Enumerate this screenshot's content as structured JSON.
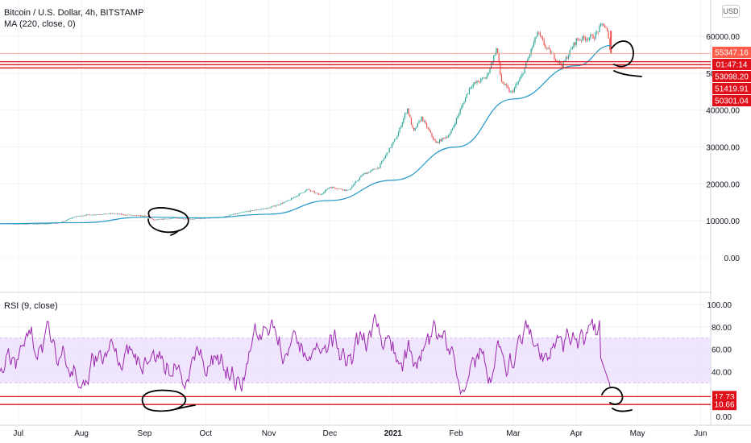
{
  "symbol": "Bitcoin / U.S. Dollar, 4h, BITSTAMP",
  "ma_label": "MA (220, close, 0)",
  "rsi_label": "RSI (9, close)",
  "currency": "USD",
  "colors": {
    "up": "#26a69a",
    "down": "#ef5350",
    "ma": "#2196c9",
    "rsi": "#9c27b0",
    "rsi_band": "#e9dcfb",
    "level_line": "#e0101b",
    "annotation": "#000000"
  },
  "chart_data": [
    {
      "type": "candlestick",
      "title": "Bitcoin / U.S. Dollar, 4h, BITSTAMP",
      "y_ticks": [
        "60000.00",
        "50000.00",
        "40000.00",
        "30000.00",
        "20000.00",
        "10000.00",
        "0.00"
      ],
      "ylim": [
        -3000,
        66000
      ],
      "x_ticks": [
        "Jul",
        "Aug",
        "Sep",
        "Oct",
        "Nov",
        "Dec",
        "2021",
        "Feb",
        "Mar",
        "Apr",
        "May",
        "Jun"
      ],
      "price_path": [
        [
          "2020-06-22",
          9300
        ],
        [
          "2020-07-01",
          9150
        ],
        [
          "2020-07-15",
          9200
        ],
        [
          "2020-07-22",
          9500
        ],
        [
          "2020-07-28",
          11000
        ],
        [
          "2020-08-02",
          11500
        ],
        [
          "2020-08-17",
          12000
        ],
        [
          "2020-08-22",
          11600
        ],
        [
          "2020-09-03",
          11200
        ],
        [
          "2020-09-05",
          10200
        ],
        [
          "2020-09-15",
          10700
        ],
        [
          "2020-09-25",
          10500
        ],
        [
          "2020-10-08",
          10900
        ],
        [
          "2020-10-21",
          12500
        ],
        [
          "2020-11-01",
          13500
        ],
        [
          "2020-11-10",
          15300
        ],
        [
          "2020-11-20",
          18500
        ],
        [
          "2020-11-26",
          17000
        ],
        [
          "2020-12-01",
          19200
        ],
        [
          "2020-12-10",
          18200
        ],
        [
          "2020-12-17",
          22500
        ],
        [
          "2020-12-25",
          24500
        ],
        [
          "2021-01-03",
          33000
        ],
        [
          "2021-01-08",
          40500
        ],
        [
          "2021-01-11",
          34000
        ],
        [
          "2021-01-15",
          38000
        ],
        [
          "2021-01-22",
          31000
        ],
        [
          "2021-01-29",
          33500
        ],
        [
          "2021-02-08",
          46500
        ],
        [
          "2021-02-16",
          49000
        ],
        [
          "2021-02-21",
          57000
        ],
        [
          "2021-02-23",
          48000
        ],
        [
          "2021-02-28",
          44500
        ],
        [
          "2021-03-05",
          49000
        ],
        [
          "2021-03-13",
          61000
        ],
        [
          "2021-03-17",
          57000
        ],
        [
          "2021-03-25",
          52000
        ],
        [
          "2021-04-01",
          59000
        ],
        [
          "2021-04-10",
          60000
        ],
        [
          "2021-04-14",
          63500
        ],
        [
          "2021-04-16",
          61500
        ],
        [
          "2021-04-18",
          55347.16
        ]
      ],
      "moving_average": {
        "name": "MA (220, close, 0)",
        "points": [
          [
            "2020-06-22",
            9200
          ],
          [
            "2020-08-01",
            9500
          ],
          [
            "2020-09-01",
            11000
          ],
          [
            "2020-10-01",
            10800
          ],
          [
            "2020-11-01",
            11800
          ],
          [
            "2020-12-01",
            15500
          ],
          [
            "2021-01-01",
            21000
          ],
          [
            "2021-02-01",
            30000
          ],
          [
            "2021-03-01",
            43000
          ],
          [
            "2021-04-01",
            52000
          ],
          [
            "2021-04-18",
            57500
          ]
        ]
      },
      "price_labels": [
        {
          "text": "55347.16",
          "value": 55347.16,
          "style": "last-price"
        },
        {
          "text": "01:47:14",
          "value": 53600,
          "style": "countdown"
        },
        {
          "text": "53098.20",
          "value": 53098.2,
          "style": "level"
        },
        {
          "text": "51419.91",
          "value": 51419.91,
          "style": "level"
        },
        {
          "text": "50301.04",
          "value": 50301.04,
          "style": "level"
        }
      ],
      "horizontal_levels": [
        55347.16,
        53098.2,
        52300,
        51419.91
      ]
    },
    {
      "type": "line",
      "title": "RSI (9, close)",
      "y_ticks": [
        "100.00",
        "80.00",
        "60.00",
        "40.00",
        "0.00"
      ],
      "ylim": [
        0,
        100
      ],
      "band": [
        30,
        70
      ],
      "period": 9,
      "series_range": [
        20,
        92
      ],
      "last_value": 25,
      "horizontal_levels": [
        17.73,
        10.66
      ],
      "level_labels": [
        {
          "text": "17.73",
          "value": 17.73
        },
        {
          "text": "10.66",
          "value": 10.66
        }
      ]
    }
  ]
}
